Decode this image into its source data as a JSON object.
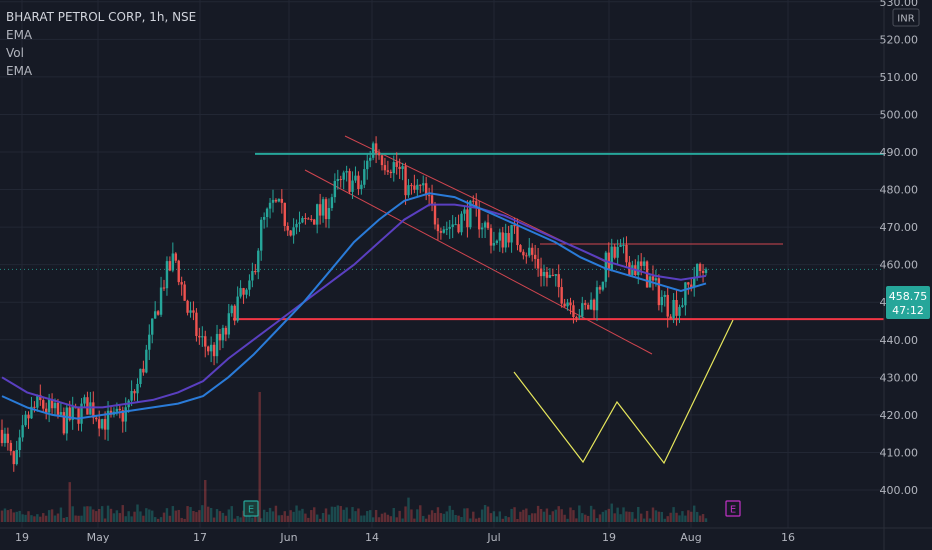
{
  "chart_data": {
    "type": "candlestick",
    "title": "BHARAT PETROL CORP, 1h, NSE",
    "indicators": [
      "EMA",
      "Vol",
      "EMA"
    ],
    "currency": "INR",
    "ylim": [
      393,
      533
    ],
    "y_ticks": [
      400,
      410,
      420,
      430,
      440,
      450,
      460,
      470,
      480,
      490,
      500,
      510,
      520,
      530
    ],
    "x_ticks": [
      "19",
      "May",
      "17",
      "Jun",
      "14",
      "Jul",
      "19",
      "Aug",
      "16"
    ],
    "last_price": "458.75",
    "countdown": "47:12",
    "price_close": [
      416,
      405,
      419,
      423,
      421,
      418,
      420,
      423,
      419,
      418,
      421,
      428,
      440,
      455,
      462,
      448,
      440,
      437,
      441,
      450,
      452,
      470,
      476,
      472,
      469,
      473,
      474,
      480,
      483,
      480,
      492,
      488,
      486,
      479,
      480,
      473,
      470,
      472,
      474,
      471,
      465,
      469,
      466,
      462,
      457,
      454,
      450,
      447,
      451,
      461,
      463,
      460,
      458,
      453,
      449,
      450,
      457,
      459
    ],
    "horizontal_levels": [
      {
        "price": 489.5,
        "color": "#26a69a"
      },
      {
        "price": 445.5,
        "color": "#f23645"
      },
      {
        "price": 465.5,
        "color": "#d0454f"
      }
    ],
    "ema_fast": [
      425,
      422,
      420,
      419,
      420,
      421,
      422,
      423,
      425,
      430,
      436,
      443,
      450,
      458,
      466,
      472,
      477,
      479,
      478,
      475,
      472,
      469,
      466,
      462,
      459,
      457,
      455,
      453,
      455
    ],
    "ema_slow": [
      430,
      426,
      424,
      422,
      422,
      423,
      424,
      426,
      429,
      435,
      440,
      445,
      450,
      455,
      460,
      466,
      472,
      476,
      476,
      475,
      473,
      470,
      467,
      464,
      461,
      459,
      457,
      456,
      457
    ],
    "volume_markers": [
      "E",
      "E"
    ],
    "colors": {
      "background": "#161a25",
      "up": "#26a69a",
      "down": "#ef5350",
      "ema_fast": "#2a7bd8",
      "ema_slow": "#5a3fc0",
      "pattern": "#e6e65c",
      "grid": "#222734",
      "text": "#b2b5be"
    }
  }
}
